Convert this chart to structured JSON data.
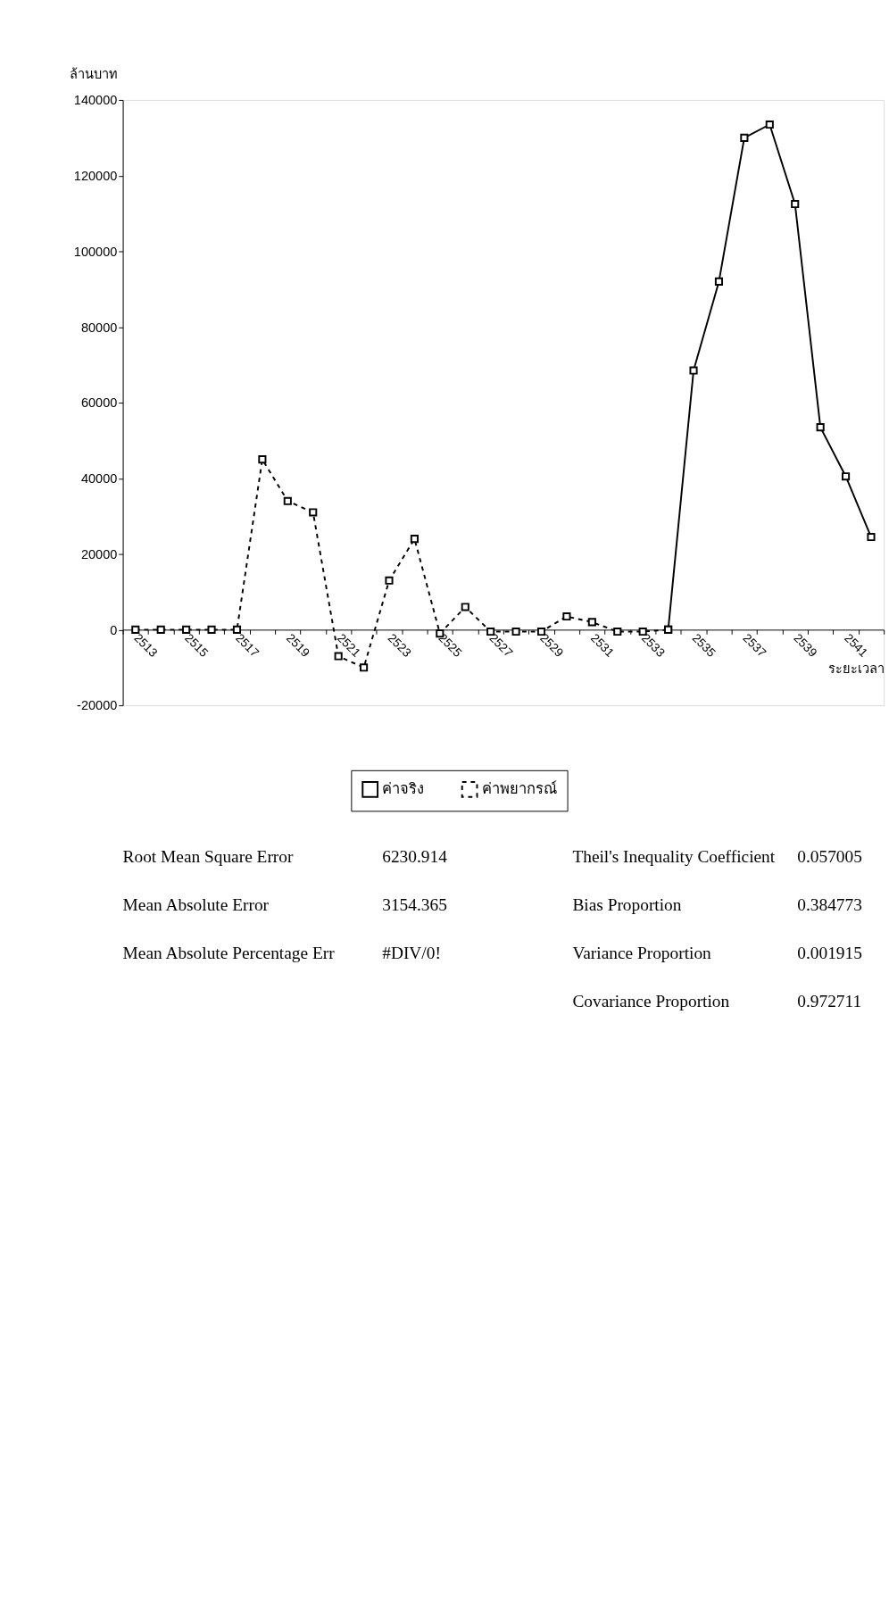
{
  "chart_data": {
    "type": "line",
    "xlabel": "ระยะเวลา",
    "ylabel": "ล้านบาท",
    "categories": [
      "2513",
      null,
      "2515",
      null,
      "2517",
      null,
      "2519",
      null,
      "2521",
      null,
      "2523",
      null,
      "2525",
      null,
      "2527",
      null,
      "2529",
      null,
      "2531",
      null,
      "2533",
      null,
      "2535",
      null,
      "2537",
      null,
      "2539",
      null,
      "2541",
      null
    ],
    "series": [
      {
        "name": "ค่าจริง",
        "color": "#000000",
        "line_style": "solid",
        "values": [
          null,
          null,
          null,
          null,
          null,
          null,
          null,
          null,
          null,
          null,
          null,
          null,
          null,
          null,
          null,
          null,
          null,
          null,
          null,
          null,
          null,
          0,
          68500,
          92000,
          130000,
          133500,
          112500,
          53500,
          40500,
          24500
        ]
      },
      {
        "name": "ค่าพยากรณ์",
        "color": "#000000",
        "line_style": "dashed",
        "values": [
          0,
          0,
          0,
          0,
          0,
          45000,
          34000,
          31000,
          -7000,
          -10000,
          13000,
          24000,
          -1000,
          6000,
          -500,
          -500,
          -500,
          3500,
          2000,
          -500,
          -500,
          0,
          null,
          null,
          null,
          null,
          null,
          null,
          null,
          null
        ]
      }
    ],
    "marker": "square",
    "ylim": [
      -20000,
      140000
    ],
    "yticks": [
      -20000,
      0,
      20000,
      40000,
      60000,
      80000,
      100000,
      120000,
      140000
    ],
    "legend": "bottom",
    "annotations": [
      "Root Mean Square Error",
      "6230.914",
      "Theil's Inequality Coefficient",
      "0.057005",
      "Mean Absolute Error",
      "3154.365",
      "Bias Proportion",
      "0.384773",
      "Mean Absolute Percentage Err",
      "#DIV/0!",
      "Variance Proportion",
      "0.001915",
      "Covariance Proportion",
      "0.972711"
    ]
  }
}
